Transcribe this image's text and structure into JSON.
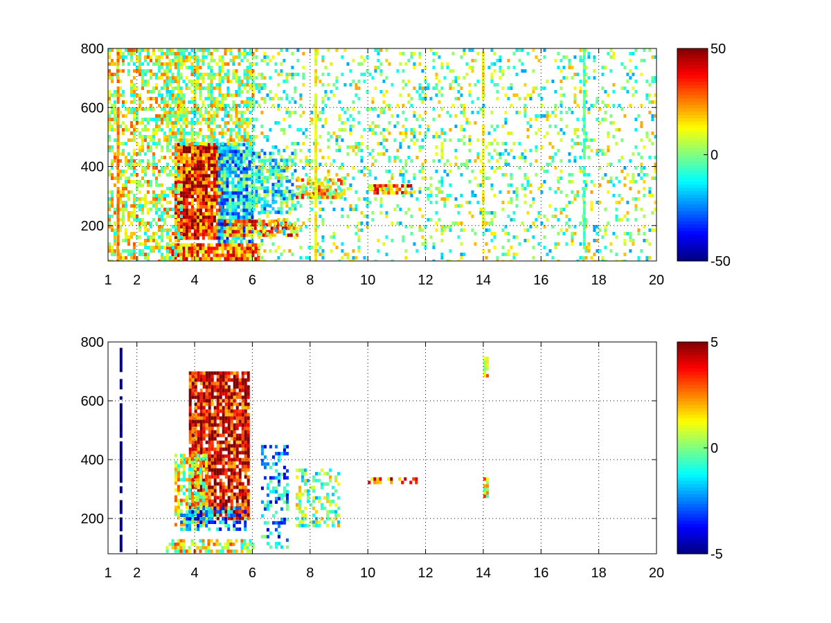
{
  "chart_data": [
    {
      "type": "heatmap",
      "title": "",
      "xlabel": "",
      "ylabel": "",
      "xlim": [
        1,
        20
      ],
      "ylim": [
        80,
        800
      ],
      "x_scale": "linear",
      "grid": true,
      "x_ticks": [
        1,
        2,
        4,
        6,
        8,
        10,
        12,
        14,
        16,
        18,
        20
      ],
      "x_tick_labels": [
        "1",
        "2",
        "4",
        "6",
        "8",
        "10",
        "12",
        "14",
        "16",
        "18",
        "20"
      ],
      "y_ticks": [
        200,
        400,
        600,
        800
      ],
      "y_tick_labels": [
        "200",
        "400",
        "600",
        "800"
      ],
      "colormap": "jet",
      "colorbar": {
        "range": [
          -50,
          50
        ],
        "ticks": [
          50,
          0,
          -50
        ],
        "tick_labels": [
          "50",
          "0",
          "-50"
        ],
        "position": "right"
      },
      "features": [
        {
          "x": [
            3.3,
            5.0
          ],
          "y": [
            160,
            480
          ],
          "value": 35,
          "density": 0.95
        },
        {
          "x": [
            4.8,
            6.0
          ],
          "y": [
            140,
            480
          ],
          "value": -15,
          "density": 0.85
        },
        {
          "x": [
            3.0,
            6.2
          ],
          "y": [
            90,
            140
          ],
          "value": 25,
          "density": 0.9
        },
        {
          "x": [
            5.0,
            7.5
          ],
          "y": [
            170,
            220
          ],
          "value": 25,
          "density": 0.8
        },
        {
          "x": [
            6.0,
            7.5
          ],
          "y": [
            250,
            450
          ],
          "value": -10,
          "density": 0.6
        },
        {
          "x": [
            7.5,
            9.2
          ],
          "y": [
            300,
            360
          ],
          "value": 15,
          "density": 0.7
        },
        {
          "x": [
            10.0,
            11.5
          ],
          "y": [
            310,
            340
          ],
          "value": 25,
          "density": 0.8
        },
        {
          "x": [
            1.0,
            3.5
          ],
          "y": [
            80,
            800
          ],
          "value": 8,
          "density": 0.5
        },
        {
          "x": [
            3.0,
            6.0
          ],
          "y": [
            480,
            800
          ],
          "value": 5,
          "density": 0.6
        },
        {
          "x": [
            6.0,
            20.0
          ],
          "y": [
            80,
            800
          ],
          "value": 0,
          "density": 0.18
        }
      ],
      "lines": [
        {
          "x": 1.35,
          "y": [
            80,
            800
          ],
          "value": 25
        },
        {
          "x": 14.0,
          "y": [
            200,
            800
          ],
          "value": 12
        },
        {
          "x": 8.2,
          "y": [
            80,
            800
          ],
          "value": 12
        },
        {
          "x": 17.5,
          "y": [
            120,
            800
          ],
          "value": -5
        }
      ]
    },
    {
      "type": "heatmap",
      "title": "",
      "xlabel": "",
      "ylabel": "",
      "xlim": [
        1,
        20
      ],
      "ylim": [
        80,
        800
      ],
      "x_scale": "linear",
      "grid": true,
      "x_ticks": [
        1,
        2,
        4,
        6,
        8,
        10,
        12,
        14,
        16,
        18,
        20
      ],
      "x_tick_labels": [
        "1",
        "2",
        "4",
        "6",
        "8",
        "10",
        "12",
        "14",
        "16",
        "18",
        "20"
      ],
      "y_ticks": [
        200,
        400,
        600,
        800
      ],
      "y_tick_labels": [
        "200",
        "400",
        "600",
        "800"
      ],
      "colormap": "jet",
      "colorbar": {
        "range": [
          -5,
          5
        ],
        "ticks": [
          5,
          0,
          -5
        ],
        "tick_labels": [
          "5",
          "0",
          "-5"
        ],
        "position": "right"
      },
      "features": [
        {
          "x": [
            3.8,
            5.9
          ],
          "y": [
            200,
            700
          ],
          "value": 4,
          "density": 0.85
        },
        {
          "x": [
            3.3,
            4.4
          ],
          "y": [
            180,
            420
          ],
          "value": 1,
          "density": 0.7
        },
        {
          "x": [
            3.5,
            5.8
          ],
          "y": [
            160,
            240
          ],
          "value": -2,
          "density": 0.6
        },
        {
          "x": [
            3.0,
            6.0
          ],
          "y": [
            90,
            130
          ],
          "value": 1,
          "density": 0.65
        },
        {
          "x": [
            6.3,
            7.2
          ],
          "y": [
            100,
            450
          ],
          "value": -2,
          "density": 0.35
        },
        {
          "x": [
            7.5,
            9.0
          ],
          "y": [
            180,
            370
          ],
          "value": 0,
          "density": 0.4
        },
        {
          "x": [
            10.0,
            11.7
          ],
          "y": [
            320,
            340
          ],
          "value": 3,
          "density": 0.5
        },
        {
          "x": [
            14.0,
            14.15
          ],
          "y": [
            280,
            340
          ],
          "value": 1.5,
          "density": 0.9
        },
        {
          "x": [
            14.0,
            14.15
          ],
          "y": [
            680,
            750
          ],
          "value": 1,
          "density": 0.9
        }
      ],
      "lines": [
        {
          "x": 1.45,
          "y": [
            90,
            780
          ],
          "value": -5
        }
      ]
    }
  ]
}
